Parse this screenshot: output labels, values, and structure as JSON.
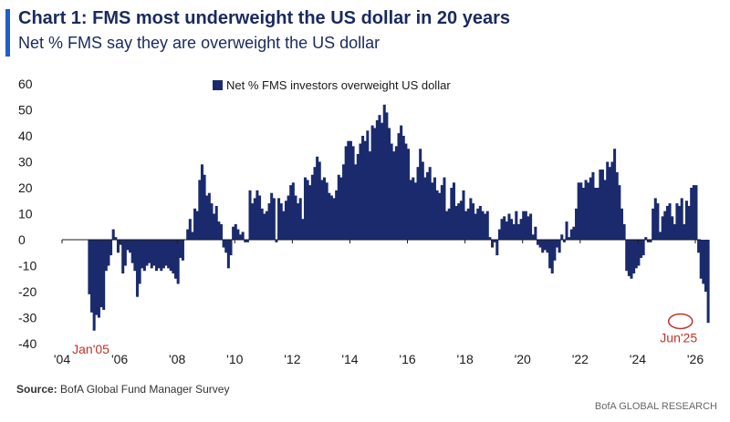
{
  "header": {
    "title": "Chart 1: FMS most underweight the US dollar in 20 years",
    "subtitle": "Net % FMS say they are overweight the US dollar"
  },
  "footer": {
    "source_label": "Source:",
    "source_text": "BofA Global Fund Manager Survey",
    "credit": "BofA GLOBAL RESEARCH"
  },
  "colors": {
    "bar": "#1a2a6c",
    "annotation": "#c0322b",
    "accent": "#1f5fc6"
  },
  "chart_data": {
    "type": "bar",
    "legend": "Net % FMS investors overweight US dollar",
    "legend_position": "top-center",
    "ylim": [
      -40,
      60
    ],
    "yticks": [
      -40,
      -30,
      -20,
      -10,
      0,
      10,
      20,
      30,
      40,
      50,
      60
    ],
    "xlim": [
      2004,
      2026
    ],
    "xtick_values": [
      2004,
      2006,
      2008,
      2010,
      2012,
      2014,
      2016,
      2018,
      2020,
      2022,
      2024,
      2026
    ],
    "xtick_labels": [
      "'04",
      "'06",
      "'08",
      "'10",
      "'12",
      "'14",
      "'16",
      "'18",
      "'20",
      "'22",
      "'24",
      "'26"
    ],
    "grid": false,
    "annotations": [
      {
        "text": "Jan'05",
        "x": 2005.0,
        "y": -35
      },
      {
        "text": "Jun'25",
        "x": 2025.42,
        "y": -30
      }
    ],
    "x_start": 2004.9,
    "x_step": 0.08333,
    "values": [
      -21,
      -28,
      -35,
      -29,
      -30,
      -26,
      -27,
      -12,
      -10,
      -6,
      4,
      1,
      -5,
      -2,
      -13,
      -10,
      -4,
      -5,
      -9,
      -12,
      -22,
      -17,
      -11,
      -12,
      -10,
      -9,
      -11,
      -10,
      -12,
      -11,
      -12,
      -11,
      -10,
      -11,
      -12,
      -13,
      -15,
      -17,
      -7,
      -8,
      0,
      4,
      8,
      3,
      12,
      11,
      23,
      29,
      25,
      17,
      18,
      14,
      10,
      13,
      7,
      6,
      -3,
      -5,
      -11,
      -6,
      5,
      6,
      4,
      2,
      3,
      -1,
      -1,
      19,
      14,
      16,
      19,
      17,
      12,
      10,
      11,
      14,
      18,
      16,
      -1,
      16,
      14,
      11,
      15,
      17,
      21,
      22,
      17,
      14,
      16,
      8,
      24,
      23,
      21,
      25,
      28,
      32,
      30,
      23,
      24,
      22,
      18,
      17,
      16,
      19,
      25,
      24,
      29,
      36,
      38,
      38,
      36,
      29,
      33,
      37,
      40,
      38,
      42,
      34,
      44,
      43,
      46,
      48,
      45,
      52,
      49,
      43,
      37,
      34,
      36,
      41,
      44,
      40,
      37,
      35,
      23,
      24,
      22,
      28,
      35,
      30,
      24,
      26,
      28,
      22,
      24,
      19,
      18,
      21,
      24,
      11,
      12,
      20,
      22,
      13,
      14,
      15,
      19,
      11,
      12,
      16,
      14,
      10,
      12,
      13,
      11,
      10,
      11,
      1,
      -3,
      -1,
      -6,
      4,
      8,
      9,
      7,
      10,
      8,
      6,
      11,
      6,
      8,
      11,
      11,
      9,
      10,
      2,
      5,
      -2,
      -3,
      -5,
      -4,
      -5,
      -11,
      -13,
      -8,
      -3,
      -5,
      2,
      -1,
      7,
      1,
      4,
      5,
      12,
      22,
      22,
      20,
      23,
      22,
      24,
      26,
      20,
      20,
      27,
      27,
      23,
      30,
      28,
      30,
      35,
      26,
      21,
      12,
      6,
      -12,
      -14,
      -15,
      -13,
      -11,
      -10,
      -7,
      -6,
      1,
      -1,
      -1,
      12,
      16,
      14,
      3,
      9,
      11,
      13,
      14,
      9,
      6,
      14,
      13,
      16,
      6,
      15,
      13,
      20,
      21,
      21,
      -5,
      -15,
      -17,
      -20,
      -32
    ]
  }
}
